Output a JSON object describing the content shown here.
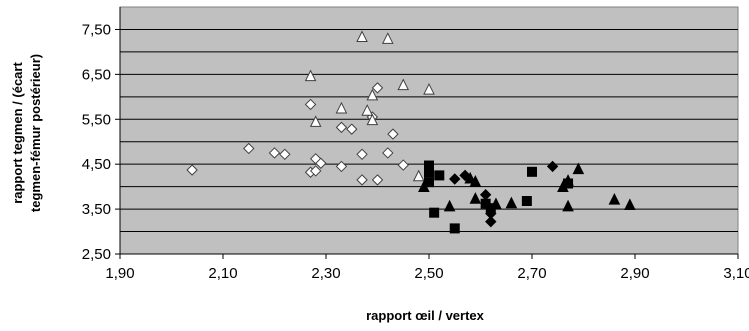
{
  "chart_data": {
    "type": "scatter",
    "title": "",
    "xlabel": "rapport œil / vertex",
    "ylabel_line1": "rapport tegmen / (écart",
    "ylabel_line2": "tegmen-fémur postérieur)",
    "xlim": [
      1.9,
      3.1
    ],
    "ylim": [
      2.5,
      8.0
    ],
    "x_ticks": [
      1.9,
      2.1,
      2.3,
      2.5,
      2.7,
      2.9,
      3.1
    ],
    "x_tick_labels": [
      "1,90",
      "2,10",
      "2,30",
      "2,50",
      "2,70",
      "2,90",
      "3,10"
    ],
    "y_ticks": [
      2.5,
      3.5,
      4.5,
      5.5,
      6.5,
      7.5
    ],
    "y_tick_labels": [
      "2,50",
      "3,50",
      "4,50",
      "5,50",
      "6,50",
      "7,50"
    ],
    "gridlines_y": [
      3.0,
      3.5,
      4.0,
      4.5,
      5.0,
      5.5,
      6.0,
      6.5,
      7.0,
      7.5
    ],
    "grid": true,
    "plot_background": "#c0c0c0",
    "legend": "none",
    "series": [
      {
        "marker": "diamond-open",
        "points": [
          [
            2.04,
            4.37
          ],
          [
            2.15,
            4.85
          ],
          [
            2.2,
            4.75
          ],
          [
            2.22,
            4.72
          ],
          [
            2.27,
            5.83
          ],
          [
            2.28,
            4.62
          ],
          [
            2.27,
            4.32
          ],
          [
            2.28,
            4.35
          ],
          [
            2.29,
            4.52
          ],
          [
            2.33,
            5.32
          ],
          [
            2.33,
            4.45
          ],
          [
            2.35,
            5.28
          ],
          [
            2.37,
            4.72
          ],
          [
            2.37,
            4.15
          ],
          [
            2.39,
            5.55
          ],
          [
            2.4,
            6.2
          ],
          [
            2.4,
            4.15
          ],
          [
            2.42,
            4.75
          ],
          [
            2.43,
            5.17
          ],
          [
            2.45,
            4.48
          ]
        ]
      },
      {
        "marker": "triangle-open",
        "points": [
          [
            2.27,
            6.45
          ],
          [
            2.28,
            5.43
          ],
          [
            2.33,
            5.73
          ],
          [
            2.37,
            7.32
          ],
          [
            2.38,
            5.68
          ],
          [
            2.39,
            6.02
          ],
          [
            2.39,
            5.47
          ],
          [
            2.42,
            7.28
          ],
          [
            2.45,
            6.25
          ],
          [
            2.48,
            4.22
          ],
          [
            2.5,
            6.15
          ]
        ]
      },
      {
        "marker": "square-filled",
        "points": [
          [
            2.5,
            4.1
          ],
          [
            2.5,
            4.47
          ],
          [
            2.5,
            4.32
          ],
          [
            2.51,
            3.42
          ],
          [
            2.52,
            4.25
          ],
          [
            2.55,
            3.07
          ],
          [
            2.61,
            3.62
          ],
          [
            2.62,
            3.52
          ],
          [
            2.69,
            3.68
          ],
          [
            2.7,
            4.33
          ],
          [
            2.77,
            4.07
          ]
        ]
      },
      {
        "marker": "diamond-filled",
        "points": [
          [
            2.55,
            4.17
          ],
          [
            2.57,
            4.25
          ],
          [
            2.61,
            3.82
          ],
          [
            2.62,
            3.22
          ],
          [
            2.62,
            3.4
          ],
          [
            2.74,
            4.45
          ]
        ]
      },
      {
        "marker": "triangle-filled",
        "points": [
          [
            2.49,
            3.98
          ],
          [
            2.54,
            3.55
          ],
          [
            2.58,
            4.17
          ],
          [
            2.59,
            3.72
          ],
          [
            2.59,
            4.1
          ],
          [
            2.63,
            3.6
          ],
          [
            2.66,
            3.62
          ],
          [
            2.76,
            3.98
          ],
          [
            2.77,
            3.55
          ],
          [
            2.77,
            4.12
          ],
          [
            2.79,
            4.38
          ],
          [
            2.86,
            3.7
          ],
          [
            2.89,
            3.58
          ]
        ]
      }
    ]
  }
}
